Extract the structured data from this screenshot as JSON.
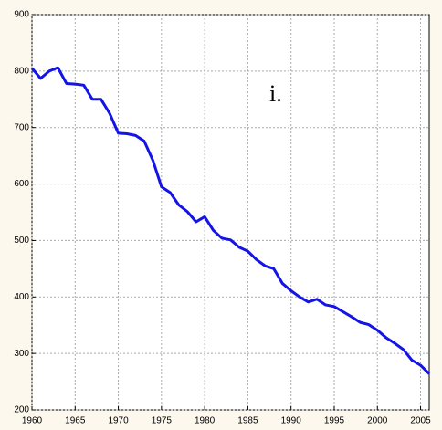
{
  "chart_data": {
    "type": "line",
    "annotation": "i.",
    "x": [
      1960,
      1961,
      1962,
      1963,
      1964,
      1965,
      1966,
      1967,
      1968,
      1969,
      1970,
      1971,
      1972,
      1973,
      1974,
      1975,
      1976,
      1977,
      1978,
      1979,
      1980,
      1981,
      1982,
      1983,
      1984,
      1985,
      1986,
      1987,
      1988,
      1989,
      1990,
      1991,
      1992,
      1993,
      1994,
      1995,
      1996,
      1997,
      1998,
      1999,
      2000,
      2001,
      2002,
      2003,
      2004,
      2005,
      2006
    ],
    "series": [
      {
        "color": "#1414e6",
        "values": [
          805,
          787,
          800,
          806,
          778,
          777,
          775,
          750,
          750,
          725,
          690,
          689,
          686,
          676,
          642,
          595,
          585,
          563,
          551,
          533,
          542,
          518,
          504,
          501,
          488,
          481,
          466,
          455,
          450,
          424,
          411,
          400,
          391,
          396,
          386,
          383,
          374,
          365,
          355,
          351,
          341,
          328,
          318,
          307,
          288,
          279,
          264
        ]
      }
    ],
    "xlim": [
      1960,
      2006
    ],
    "xticks": [
      1960,
      1965,
      1970,
      1975,
      1980,
      1985,
      1990,
      1995,
      2000,
      2005
    ],
    "ylim": [
      200,
      900
    ],
    "yticks": [
      200,
      300,
      400,
      500,
      600,
      700,
      800,
      900
    ],
    "grid": true
  }
}
